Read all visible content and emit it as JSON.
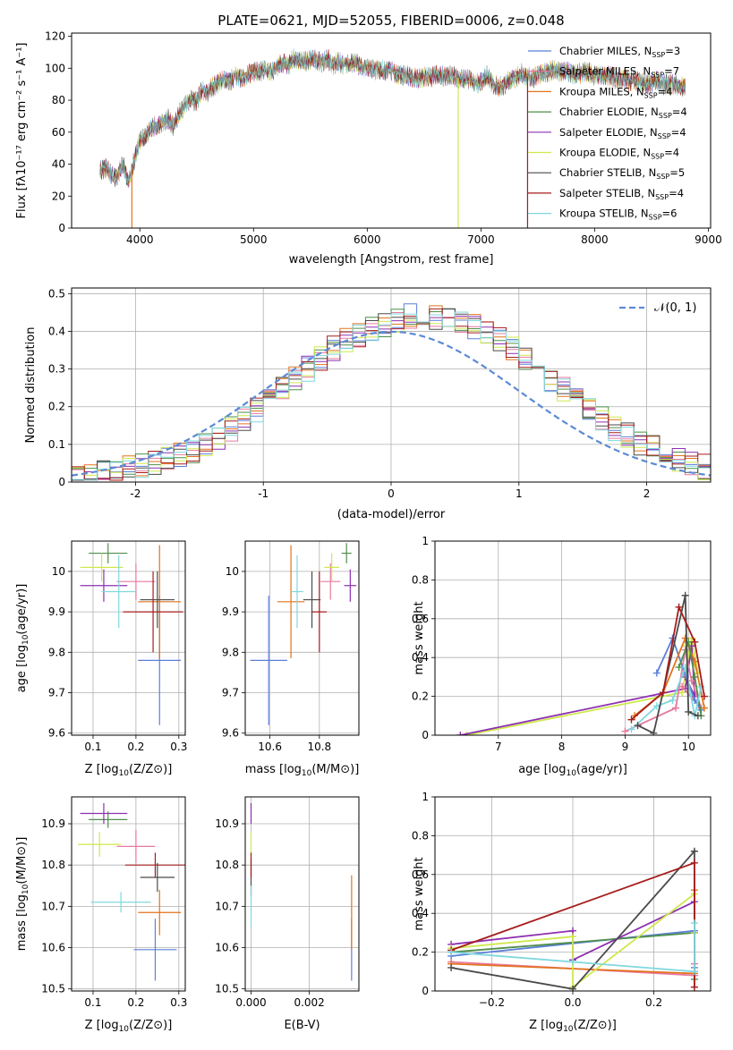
{
  "colors": {
    "Chabrier MILES": "#5b7fd9",
    "Salpeter MILES": "#e8799e",
    "Kroupa MILES": "#e2731c",
    "Chabrier ELODIE": "#4f8f4a",
    "Salpeter ELODIE": "#8e30b0",
    "Kroupa ELODIE": "#cfe84d",
    "Chabrier STELIB": "#4a4a4a",
    "Salpeter STELIB": "#a61c1c",
    "Kroupa STELIB": "#7fd8de"
  },
  "chart_data": [
    {
      "id": "spectrum",
      "type": "line",
      "title": "PLATE=0621, MJD=52055, FIBERID=0006, z=0.048",
      "xlabel": "wavelength [Angstrom, rest frame]",
      "ylabel": "Flux [fλ10⁻¹⁷ erg cm⁻² s⁻¹ A⁻¹]",
      "xlim": [
        3400,
        9020
      ],
      "ylim": [
        0,
        122
      ],
      "xticks": [
        4000,
        5000,
        6000,
        7000,
        8000,
        9000
      ],
      "yticks": [
        0,
        20,
        40,
        60,
        80,
        100,
        120
      ],
      "grid": false,
      "legend_position": "top-right",
      "legend": [
        {
          "label": "Chabrier MILES, N",
          "sub": "SSP",
          "tail": "=3"
        },
        {
          "label": "Salpeter MILES, N",
          "sub": "SSP",
          "tail": "=7"
        },
        {
          "label": "Kroupa MILES, N",
          "sub": "SSP",
          "tail": "=4"
        },
        {
          "label": "Chabrier ELODIE, N",
          "sub": "SSP",
          "tail": "=4"
        },
        {
          "label": "Salpeter ELODIE, N",
          "sub": "SSP",
          "tail": "=4"
        },
        {
          "label": "Kroupa ELODIE, N",
          "sub": "SSP",
          "tail": "=4"
        },
        {
          "label": "Chabrier STELIB, N",
          "sub": "SSP",
          "tail": "=5"
        },
        {
          "label": "Salpeter STELIB, N",
          "sub": "SSP",
          "tail": "=4"
        },
        {
          "label": "Kroupa STELIB, N",
          "sub": "SSP",
          "tail": "=6"
        }
      ],
      "x": [
        3650,
        3700,
        3750,
        3800,
        3850,
        3900,
        3950,
        4000,
        4050,
        4100,
        4150,
        4200,
        4250,
        4300,
        4350,
        4400,
        4450,
        4500,
        4550,
        4600,
        4650,
        4700,
        4750,
        4800,
        4850,
        4900,
        4950,
        5000,
        5050,
        5100,
        5150,
        5200,
        5250,
        5300,
        5350,
        5400,
        5450,
        5500,
        5550,
        5600,
        5650,
        5700,
        5750,
        5800,
        5850,
        5900,
        5950,
        6000,
        6050,
        6100,
        6150,
        6200,
        6250,
        6300,
        6350,
        6400,
        6450,
        6500,
        6550,
        6600,
        6650,
        6700,
        6750,
        6800,
        6850,
        6900,
        6950,
        7000,
        7050,
        7100,
        7150,
        7200,
        7250,
        7300,
        7350,
        7400,
        7450,
        7500,
        7550,
        7600,
        7650,
        7700,
        7750,
        7800,
        7850,
        7900,
        7950,
        8000,
        8050,
        8100,
        8150,
        8200,
        8250,
        8300,
        8350,
        8400,
        8450,
        8500,
        8550,
        8600,
        8650,
        8700,
        8750,
        8800
      ],
      "y": [
        36,
        38,
        33,
        32,
        40,
        28,
        42,
        55,
        57,
        63,
        64,
        66,
        68,
        64,
        72,
        78,
        80,
        80,
        86,
        86,
        88,
        92,
        92,
        93,
        95,
        94,
        96,
        98,
        97,
        100,
        97,
        101,
        103,
        102,
        106,
        105,
        104,
        106,
        105,
        104,
        106,
        102,
        104,
        102,
        103,
        104,
        100,
        101,
        99,
        100,
        98,
        99,
        96,
        96,
        95,
        94,
        93,
        95,
        94,
        96,
        95,
        95,
        95,
        94,
        93,
        94,
        90,
        92,
        95,
        91,
        88,
        90,
        92,
        94,
        97,
        95,
        93,
        96,
        97,
        98,
        99,
        98,
        98,
        97,
        96,
        98,
        97,
        96,
        96,
        95,
        95,
        93,
        94,
        92,
        92,
        92,
        90,
        91,
        92,
        90,
        90,
        90,
        89,
        88
      ],
      "dips": [
        {
          "x": 3930,
          "y": 0,
          "series": "Kroupa MILES"
        },
        {
          "x": 6800,
          "y": 0,
          "series": "Kroupa ELODIE"
        },
        {
          "x": 7410,
          "y": 0,
          "series": "Salpeter STELIB"
        }
      ]
    },
    {
      "id": "residuals",
      "type": "histogram",
      "xlabel": "(data-model)/error",
      "ylabel": "Normed distribution",
      "xlim": [
        -2.5,
        2.5
      ],
      "ylim": [
        0,
        0.515
      ],
      "xticks": [
        -2,
        -1,
        0,
        1,
        2
      ],
      "yticks": [
        0.0,
        0.1,
        0.2,
        0.3,
        0.4,
        0.5
      ],
      "grid": true,
      "legend_position": "top-right",
      "reference": {
        "label": "𝒩(0, 1)",
        "mean": 0,
        "sigma": 1,
        "color": "#5b8ad6"
      },
      "bin_edges_start": -2.5,
      "bin_width": 0.1,
      "base": [
        0.015,
        0.02,
        0.025,
        0.03,
        0.035,
        0.045,
        0.05,
        0.06,
        0.07,
        0.085,
        0.1,
        0.12,
        0.14,
        0.165,
        0.19,
        0.22,
        0.25,
        0.275,
        0.3,
        0.33,
        0.355,
        0.375,
        0.39,
        0.405,
        0.42,
        0.43,
        0.44,
        0.445,
        0.44,
        0.435,
        0.425,
        0.41,
        0.395,
        0.375,
        0.355,
        0.33,
        0.3,
        0.275,
        0.25,
        0.22,
        0.195,
        0.17,
        0.145,
        0.125,
        0.105,
        0.09,
        0.075,
        0.06,
        0.05,
        0.04
      ]
    },
    {
      "id": "z_age",
      "type": "scatter",
      "xlabel_main": "Z [log",
      "xlabel_sub": "10",
      "xlabel_tail": "(Z/Z⊙)]",
      "ylabel_main": "age  [log",
      "ylabel_sub": "10",
      "ylabel_tail": "(age/yr)]",
      "xlim": [
        0.05,
        0.315
      ],
      "ylim": [
        9.595,
        10.075
      ],
      "xticks": [
        0.1,
        0.2,
        0.3
      ],
      "yticks": [
        9.6,
        9.7,
        9.8,
        9.9,
        10.0
      ],
      "grid": true,
      "points": [
        {
          "series": "Chabrier MILES",
          "x": 0.255,
          "xerr": 0.05,
          "y": 9.78,
          "yerr": 0.16
        },
        {
          "series": "Salpeter MILES",
          "x": 0.2,
          "xerr": 0.045,
          "y": 9.975,
          "yerr": 0.045
        },
        {
          "series": "Kroupa MILES",
          "x": 0.255,
          "xerr": 0.05,
          "y": 9.925,
          "yerr": 0.14
        },
        {
          "series": "Chabrier ELODIE",
          "x": 0.135,
          "xerr": 0.045,
          "y": 10.045,
          "yerr": 0.025
        },
        {
          "series": "Salpeter ELODIE",
          "x": 0.125,
          "xerr": 0.055,
          "y": 9.965,
          "yerr": 0.04
        },
        {
          "series": "Kroupa ELODIE",
          "x": 0.12,
          "xerr": 0.05,
          "y": 10.01,
          "yerr": 0.035
        },
        {
          "series": "Chabrier STELIB",
          "x": 0.25,
          "xerr": 0.04,
          "y": 9.93,
          "yerr": 0.07
        },
        {
          "series": "Salpeter STELIB",
          "x": 0.24,
          "xerr": 0.07,
          "y": 9.9,
          "yerr": 0.1
        },
        {
          "series": "Kroupa STELIB",
          "x": 0.16,
          "xerr": 0.04,
          "y": 9.95,
          "yerr": 0.09
        }
      ]
    },
    {
      "id": "mass_age",
      "type": "scatter",
      "xlabel_main": "mass [log",
      "xlabel_sub": "10",
      "xlabel_tail": "(M/M⊙)]",
      "xlim": [
        10.5,
        10.96
      ],
      "ylim": [
        9.595,
        10.075
      ],
      "xticks": [
        10.6,
        10.8
      ],
      "yticks": [
        9.6,
        9.7,
        9.8,
        9.9,
        10.0
      ],
      "grid": true,
      "points": [
        {
          "series": "Chabrier MILES",
          "x": 10.595,
          "xerr": 0.075,
          "y": 9.78,
          "yerr": 0.16
        },
        {
          "series": "Salpeter MILES",
          "x": 10.845,
          "xerr": 0.04,
          "y": 9.975,
          "yerr": 0.045
        },
        {
          "series": "Kroupa MILES",
          "x": 10.685,
          "xerr": 0.055,
          "y": 9.925,
          "yerr": 0.14
        },
        {
          "series": "Chabrier ELODIE",
          "x": 10.91,
          "xerr": 0.02,
          "y": 10.045,
          "yerr": 0.025
        },
        {
          "series": "Salpeter ELODIE",
          "x": 10.925,
          "xerr": 0.025,
          "y": 9.965,
          "yerr": 0.04
        },
        {
          "series": "Kroupa ELODIE",
          "x": 10.85,
          "xerr": 0.03,
          "y": 10.01,
          "yerr": 0.035
        },
        {
          "series": "Chabrier STELIB",
          "x": 10.77,
          "xerr": 0.035,
          "y": 9.93,
          "yerr": 0.07
        },
        {
          "series": "Salpeter STELIB",
          "x": 10.8,
          "xerr": 0.03,
          "y": 9.9,
          "yerr": 0.1
        },
        {
          "series": "Kroupa STELIB",
          "x": 10.71,
          "xerr": 0.025,
          "y": 9.95,
          "yerr": 0.09
        }
      ]
    },
    {
      "id": "age_weight",
      "type": "line",
      "xlabel_main": "age  [log",
      "xlabel_sub": "10",
      "xlabel_tail": "(age/yr)]",
      "ylabel": "mass weight",
      "xlim": [
        6.0,
        10.35
      ],
      "ylim": [
        0.0,
        1.0
      ],
      "xticks": [
        7,
        8,
        9,
        10
      ],
      "yticks": [
        0.0,
        0.2,
        0.4,
        0.6,
        0.8,
        1.0
      ],
      "grid": true,
      "series": [
        {
          "name": "Kroupa ELODIE",
          "x": [
            6.5,
            9.9,
            10.05,
            10.15,
            9.95
          ],
          "y": [
            0.0,
            0.22,
            0.5,
            0.32,
            0.46
          ]
        },
        {
          "name": "Salpeter ELODIE",
          "x": [
            6.4,
            9.95,
            10.05,
            10.1,
            9.95
          ],
          "y": [
            0.0,
            0.24,
            0.46,
            0.2,
            0.3
          ]
        },
        {
          "name": "Salpeter MILES",
          "x": [
            9.0,
            9.8,
            9.95,
            10.05,
            10.2,
            9.9
          ],
          "y": [
            0.02,
            0.14,
            0.44,
            0.28,
            0.14,
            0.25
          ]
        },
        {
          "name": "Chabrier MILES",
          "x": [
            9.5,
            9.75,
            9.95,
            10.1,
            10.2
          ],
          "y": [
            0.32,
            0.5,
            0.31,
            0.18,
            0.13
          ]
        },
        {
          "name": "Kroupa MILES",
          "x": [
            9.15,
            9.6,
            9.95,
            10.1,
            10.25
          ],
          "y": [
            0.1,
            0.22,
            0.5,
            0.38,
            0.14
          ]
        },
        {
          "name": "Chabrier ELODIE",
          "x": [
            9.85,
            10.0,
            10.1,
            10.2
          ],
          "y": [
            0.35,
            0.48,
            0.3,
            0.1
          ]
        },
        {
          "name": "Kroupa STELIB",
          "x": [
            9.1,
            9.5,
            9.75,
            9.95,
            10.1,
            10.2
          ],
          "y": [
            0.03,
            0.15,
            0.18,
            0.35,
            0.1,
            0.25
          ]
        },
        {
          "name": "Chabrier STELIB",
          "x": [
            9.2,
            9.45,
            9.95,
            10.0,
            10.15
          ],
          "y": [
            0.05,
            0.01,
            0.72,
            0.12,
            0.1
          ]
        },
        {
          "name": "Salpeter STELIB",
          "x": [
            9.1,
            9.6,
            9.85,
            10.1,
            10.25
          ],
          "y": [
            0.08,
            0.22,
            0.66,
            0.48,
            0.2
          ]
        }
      ]
    },
    {
      "id": "z_mass",
      "type": "scatter",
      "xlabel_main": "Z [log",
      "xlabel_sub": "10",
      "xlabel_tail": "(Z/Z⊙)]",
      "ylabel_main": "mass [log",
      "ylabel_sub": "10",
      "ylabel_tail": "(M/M⊙)]",
      "xlim": [
        0.05,
        0.315
      ],
      "ylim": [
        10.495,
        10.965
      ],
      "xticks": [
        0.1,
        0.2,
        0.3
      ],
      "yticks": [
        10.5,
        10.6,
        10.7,
        10.8,
        10.9
      ],
      "grid": true,
      "points": [
        {
          "series": "Chabrier MILES",
          "x": 0.245,
          "xerr": 0.05,
          "y": 10.595,
          "yerr": 0.075
        },
        {
          "series": "Salpeter MILES",
          "x": 0.2,
          "xerr": 0.045,
          "y": 10.845,
          "yerr": 0.04
        },
        {
          "series": "Kroupa MILES",
          "x": 0.255,
          "xerr": 0.05,
          "y": 10.685,
          "yerr": 0.055
        },
        {
          "series": "Chabrier ELODIE",
          "x": 0.135,
          "xerr": 0.045,
          "y": 10.91,
          "yerr": 0.02
        },
        {
          "series": "Salpeter ELODIE",
          "x": 0.125,
          "xerr": 0.055,
          "y": 10.925,
          "yerr": 0.025
        },
        {
          "series": "Kroupa ELODIE",
          "x": 0.115,
          "xerr": 0.05,
          "y": 10.85,
          "yerr": 0.03
        },
        {
          "series": "Chabrier STELIB",
          "x": 0.25,
          "xerr": 0.04,
          "y": 10.77,
          "yerr": 0.035
        },
        {
          "series": "Salpeter STELIB",
          "x": 0.245,
          "xerr": 0.07,
          "y": 10.8,
          "yerr": 0.03
        },
        {
          "series": "Kroupa STELIB",
          "x": 0.165,
          "xerr": 0.07,
          "y": 10.71,
          "yerr": 0.025
        }
      ]
    },
    {
      "id": "ebv_mass",
      "type": "scatter",
      "xlabel": "E(B-V)",
      "xlim": [
        -0.0002,
        0.0037
      ],
      "ylim": [
        10.495,
        10.965
      ],
      "xticks": [
        0.0,
        0.002
      ],
      "xtick_labels": [
        "0.000",
        "0.002"
      ],
      "yticks": [
        10.5,
        10.6,
        10.7,
        10.8,
        10.9
      ],
      "grid": true,
      "points": [
        {
          "series": "Chabrier MILES",
          "x": 0.00345,
          "y": 10.595,
          "yerr": 0.075
        },
        {
          "series": "Kroupa MILES",
          "x": 0.00345,
          "y": 10.685,
          "yerr": 0.09
        },
        {
          "series": "Salpeter ELODIE",
          "x": 0.0,
          "y": 10.925,
          "yerr": 0.025
        },
        {
          "series": "Kroupa ELODIE",
          "x": 0.0,
          "y": 10.85,
          "yerr": 0.03
        },
        {
          "series": "Chabrier STELIB",
          "x": 0.0,
          "y": 10.77,
          "yerr": 0.045
        },
        {
          "series": "Salpeter STELIB",
          "x": 0.0,
          "y": 10.8,
          "yerr": 0.03
        },
        {
          "series": "Kroupa STELIB",
          "x": 0.0,
          "y": 10.7,
          "yerr": 0.05
        }
      ]
    },
    {
      "id": "z_weight",
      "type": "line",
      "xlabel_main": "Z [log",
      "xlabel_sub": "10",
      "xlabel_tail": "(Z/Z⊙)]",
      "ylabel": "mass weight",
      "xlim": [
        -0.34,
        0.34
      ],
      "ylim": [
        0.0,
        1.0
      ],
      "xticks": [
        -0.2,
        0.0,
        0.2
      ],
      "xtick_labels": [
        "−0.2",
        "0.0",
        "0.2"
      ],
      "yticks": [
        0.0,
        0.2,
        0.4,
        0.6,
        0.8,
        1.0
      ],
      "grid": true,
      "series": [
        {
          "name": "Chabrier MILES",
          "x": [
            -0.3,
            0.3,
            0.3
          ],
          "y": [
            0.18,
            0.31,
            0.12
          ]
        },
        {
          "name": "Salpeter MILES",
          "x": [
            -0.3,
            0.3,
            0.3,
            0.3
          ],
          "y": [
            0.15,
            0.08,
            0.02,
            0.14
          ]
        },
        {
          "name": "Kroupa MILES",
          "x": [
            -0.3,
            0.3,
            0.3
          ],
          "y": [
            0.14,
            0.09,
            0.52
          ]
        },
        {
          "name": "Chabrier ELODIE",
          "x": [
            -0.3,
            0.3,
            0.3
          ],
          "y": [
            0.2,
            0.3,
            0.06
          ]
        },
        {
          "name": "Salpeter ELODIE",
          "x": [
            -0.3,
            0.0,
            0.0,
            0.3,
            0.3
          ],
          "y": [
            0.24,
            0.31,
            0.16,
            0.46,
            0.3
          ]
        },
        {
          "name": "Kroupa ELODIE",
          "x": [
            -0.3,
            0.0,
            0.0,
            0.3,
            0.3
          ],
          "y": [
            0.22,
            0.28,
            0.02,
            0.5,
            0.3
          ]
        },
        {
          "name": "Chabrier STELIB",
          "x": [
            -0.3,
            0.0,
            0.3,
            0.3
          ],
          "y": [
            0.12,
            0.01,
            0.72,
            0.1
          ]
        },
        {
          "name": "Salpeter STELIB",
          "x": [
            -0.3,
            0.3,
            0.3
          ],
          "y": [
            0.21,
            0.66,
            0.02
          ]
        },
        {
          "name": "Kroupa STELIB",
          "x": [
            -0.3,
            0.0,
            0.3,
            0.3
          ],
          "y": [
            0.2,
            0.15,
            0.1,
            0.35
          ]
        }
      ]
    }
  ]
}
